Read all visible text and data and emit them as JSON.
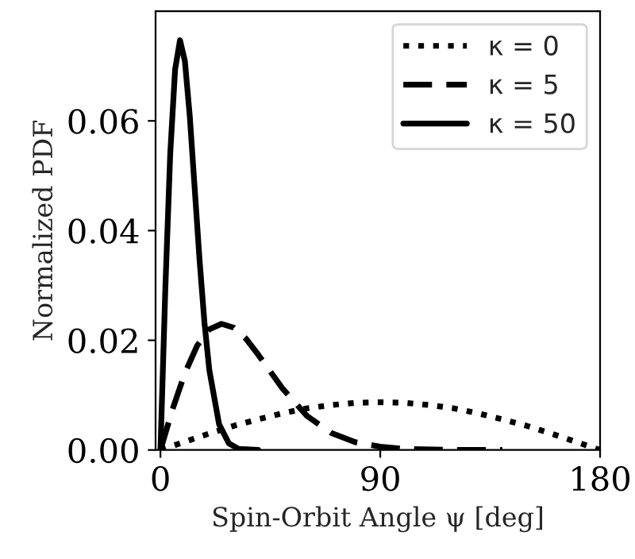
{
  "chart_data": {
    "type": "line",
    "xlabel": "Spin-Orbit Angle ψ [deg]",
    "ylabel": "Normalized PDF",
    "xlim": [
      -2,
      180
    ],
    "ylim": [
      0,
      0.08
    ],
    "xticks": [
      0,
      90,
      180
    ],
    "yticks": [
      {
        "value": 0,
        "label": "0.00"
      },
      {
        "value": 0.02,
        "label": "0.02"
      },
      {
        "value": 0.04,
        "label": "0.04"
      },
      {
        "value": 0.06,
        "label": "0.06"
      }
    ],
    "grid": false,
    "legend": "top right",
    "marker": "none",
    "series": [
      {
        "name": "κ = 0",
        "color": "#000000",
        "line_style": "dotted",
        "x": [
          0,
          10,
          20,
          30,
          40,
          50,
          60,
          70,
          80,
          90,
          100,
          110,
          120,
          130,
          140,
          150,
          160,
          170,
          180
        ],
        "values": [
          0,
          0.0015,
          0.003,
          0.0044,
          0.0056,
          0.0067,
          0.0076,
          0.0082,
          0.0086,
          0.0087,
          0.0086,
          0.0082,
          0.0076,
          0.0067,
          0.0056,
          0.0044,
          0.003,
          0.0015,
          0
        ]
      },
      {
        "name": "κ = 5",
        "color": "#000000",
        "line_style": "dashed",
        "x": [
          0,
          5,
          10,
          15,
          20,
          25,
          30,
          35,
          40,
          45,
          50,
          60,
          70,
          80,
          90,
          100,
          120,
          140
        ],
        "values": [
          0,
          0.0075,
          0.014,
          0.019,
          0.022,
          0.023,
          0.0223,
          0.0203,
          0.0174,
          0.0143,
          0.0112,
          0.0062,
          0.0031,
          0.0014,
          0.0006,
          0.0002,
          0,
          0
        ]
      },
      {
        "name": "κ = 50",
        "color": "#000000",
        "line_style": "solid",
        "x": [
          0,
          2,
          4,
          6,
          8,
          10,
          12,
          14,
          16,
          18,
          20,
          24,
          28,
          32,
          40
        ],
        "values": [
          0,
          0.0295,
          0.054,
          0.0694,
          0.0747,
          0.0709,
          0.0609,
          0.0478,
          0.0347,
          0.0233,
          0.0146,
          0.0047,
          0.0012,
          0.0002,
          0
        ]
      }
    ]
  }
}
